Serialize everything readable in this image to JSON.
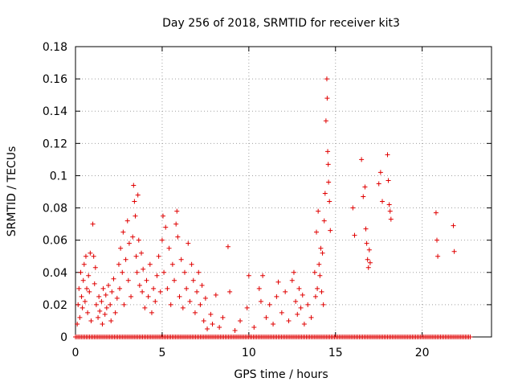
{
  "chart_data": {
    "type": "scatter",
    "title": "Day 256 of 2018, SRMTID for receiver kit3",
    "xlabel": "GPS time / hours",
    "ylabel": "SRMTID / TECUs",
    "xlim": [
      0,
      24
    ],
    "ylim": [
      0,
      0.18
    ],
    "xticks": [
      0,
      5,
      10,
      15,
      20
    ],
    "yticks": [
      0,
      0.02,
      0.04,
      0.06,
      0.08,
      0.1,
      0.12,
      0.14,
      0.16,
      0.18
    ],
    "xtick_labels": [
      "0",
      "5",
      "10",
      "15",
      "20"
    ],
    "ytick_labels": [
      "0",
      "0.02",
      "0.04",
      "0.06",
      "0.08",
      "0.1",
      "0.12",
      "0.14",
      "0.16",
      "0.18"
    ],
    "grid": true,
    "marker": "+",
    "color": "#e00000",
    "series": [
      {
        "name": "kit3",
        "points": [
          [
            0.1,
            0.008
          ],
          [
            0.15,
            0.02
          ],
          [
            0.2,
            0.03
          ],
          [
            0.25,
            0.012
          ],
          [
            0.3,
            0.04
          ],
          [
            0.35,
            0.025
          ],
          [
            0.4,
            0.018
          ],
          [
            0.45,
            0.035
          ],
          [
            0.5,
            0.045
          ],
          [
            0.55,
            0.022
          ],
          [
            0.6,
            0.05
          ],
          [
            0.65,
            0.03
          ],
          [
            0.7,
            0.015
          ],
          [
            0.75,
            0.038
          ],
          [
            0.8,
            0.028
          ],
          [
            0.85,
            0.052
          ],
          [
            0.9,
            0.01
          ],
          [
            1.0,
            0.07
          ],
          [
            1.05,
            0.05
          ],
          [
            1.1,
            0.033
          ],
          [
            1.15,
            0.043
          ],
          [
            1.2,
            0.02
          ],
          [
            1.3,
            0.012
          ],
          [
            1.35,
            0.025
          ],
          [
            1.4,
            0.016
          ],
          [
            1.5,
            0.022
          ],
          [
            1.55,
            0.008
          ],
          [
            1.6,
            0.03
          ],
          [
            1.7,
            0.014
          ],
          [
            1.75,
            0.026
          ],
          [
            1.8,
            0.018
          ],
          [
            1.9,
            0.032
          ],
          [
            2.0,
            0.02
          ],
          [
            2.05,
            0.01
          ],
          [
            2.1,
            0.028
          ],
          [
            2.2,
            0.036
          ],
          [
            2.3,
            0.015
          ],
          [
            2.4,
            0.024
          ],
          [
            2.5,
            0.045
          ],
          [
            2.55,
            0.03
          ],
          [
            2.6,
            0.055
          ],
          [
            2.7,
            0.04
          ],
          [
            2.75,
            0.065
          ],
          [
            2.8,
            0.02
          ],
          [
            2.9,
            0.048
          ],
          [
            3.0,
            0.072
          ],
          [
            3.05,
            0.035
          ],
          [
            3.1,
            0.058
          ],
          [
            3.2,
            0.025
          ],
          [
            3.3,
            0.062
          ],
          [
            3.35,
            0.094
          ],
          [
            3.4,
            0.084
          ],
          [
            3.45,
            0.075
          ],
          [
            3.5,
            0.05
          ],
          [
            3.55,
            0.04
          ],
          [
            3.6,
            0.088
          ],
          [
            3.65,
            0.06
          ],
          [
            3.7,
            0.032
          ],
          [
            3.8,
            0.052
          ],
          [
            3.85,
            0.028
          ],
          [
            3.9,
            0.042
          ],
          [
            4.0,
            0.018
          ],
          [
            4.1,
            0.035
          ],
          [
            4.2,
            0.025
          ],
          [
            4.3,
            0.045
          ],
          [
            4.4,
            0.015
          ],
          [
            4.5,
            0.03
          ],
          [
            4.6,
            0.022
          ],
          [
            4.7,
            0.038
          ],
          [
            4.8,
            0.05
          ],
          [
            4.9,
            0.028
          ],
          [
            5.0,
            0.06
          ],
          [
            5.05,
            0.075
          ],
          [
            5.1,
            0.04
          ],
          [
            5.2,
            0.068
          ],
          [
            5.3,
            0.03
          ],
          [
            5.4,
            0.055
          ],
          [
            5.5,
            0.02
          ],
          [
            5.6,
            0.045
          ],
          [
            5.7,
            0.035
          ],
          [
            5.8,
            0.07
          ],
          [
            5.85,
            0.078
          ],
          [
            5.9,
            0.062
          ],
          [
            6.0,
            0.025
          ],
          [
            6.1,
            0.048
          ],
          [
            6.2,
            0.018
          ],
          [
            6.3,
            0.04
          ],
          [
            6.4,
            0.03
          ],
          [
            6.5,
            0.058
          ],
          [
            6.6,
            0.022
          ],
          [
            6.7,
            0.045
          ],
          [
            6.8,
            0.035
          ],
          [
            6.9,
            0.015
          ],
          [
            7.0,
            0.028
          ],
          [
            7.1,
            0.04
          ],
          [
            7.2,
            0.02
          ],
          [
            7.3,
            0.032
          ],
          [
            7.4,
            0.01
          ],
          [
            7.5,
            0.024
          ],
          [
            7.6,
            0.005
          ],
          [
            7.8,
            0.014
          ],
          [
            7.9,
            0.008
          ],
          [
            8.1,
            0.026
          ],
          [
            8.3,
            0.006
          ],
          [
            8.5,
            0.012
          ],
          [
            8.8,
            0.056
          ],
          [
            8.9,
            0.028
          ],
          [
            9.2,
            0.004
          ],
          [
            9.5,
            0.01
          ],
          [
            9.9,
            0.018
          ],
          [
            10.0,
            0.038
          ],
          [
            10.3,
            0.006
          ],
          [
            10.6,
            0.03
          ],
          [
            10.7,
            0.022
          ],
          [
            10.8,
            0.038
          ],
          [
            11.0,
            0.012
          ],
          [
            11.2,
            0.02
          ],
          [
            11.4,
            0.008
          ],
          [
            11.6,
            0.025
          ],
          [
            11.7,
            0.034
          ],
          [
            11.9,
            0.015
          ],
          [
            12.1,
            0.028
          ],
          [
            12.3,
            0.01
          ],
          [
            12.5,
            0.035
          ],
          [
            12.6,
            0.04
          ],
          [
            12.7,
            0.022
          ],
          [
            12.8,
            0.014
          ],
          [
            12.9,
            0.03
          ],
          [
            13.0,
            0.018
          ],
          [
            13.1,
            0.026
          ],
          [
            13.2,
            0.008
          ],
          [
            13.4,
            0.02
          ],
          [
            13.6,
            0.012
          ],
          [
            13.8,
            0.04
          ],
          [
            13.85,
            0.025
          ],
          [
            13.9,
            0.065
          ],
          [
            13.95,
            0.03
          ],
          [
            14.0,
            0.078
          ],
          [
            14.05,
            0.045
          ],
          [
            14.1,
            0.038
          ],
          [
            14.15,
            0.055
          ],
          [
            14.2,
            0.028
          ],
          [
            14.25,
            0.052
          ],
          [
            14.3,
            0.02
          ],
          [
            14.35,
            0.072
          ],
          [
            14.4,
            0.089
          ],
          [
            14.45,
            0.134
          ],
          [
            14.5,
            0.16
          ],
          [
            14.52,
            0.148
          ],
          [
            14.55,
            0.115
          ],
          [
            14.58,
            0.107
          ],
          [
            14.6,
            0.096
          ],
          [
            14.65,
            0.084
          ],
          [
            14.7,
            0.066
          ],
          [
            16.0,
            0.08
          ],
          [
            16.1,
            0.063
          ],
          [
            16.5,
            0.11
          ],
          [
            16.6,
            0.087
          ],
          [
            16.7,
            0.093
          ],
          [
            16.75,
            0.067
          ],
          [
            16.8,
            0.058
          ],
          [
            16.85,
            0.048
          ],
          [
            16.9,
            0.043
          ],
          [
            16.95,
            0.054
          ],
          [
            17.0,
            0.046
          ],
          [
            17.5,
            0.095
          ],
          [
            17.6,
            0.102
          ],
          [
            17.7,
            0.084
          ],
          [
            18.0,
            0.113
          ],
          [
            18.05,
            0.097
          ],
          [
            18.1,
            0.082
          ],
          [
            18.15,
            0.078
          ],
          [
            18.2,
            0.073
          ],
          [
            20.8,
            0.077
          ],
          [
            20.85,
            0.06
          ],
          [
            20.9,
            0.05
          ],
          [
            21.8,
            0.069
          ],
          [
            21.85,
            0.053
          ]
        ]
      }
    ],
    "zero_line": {
      "y": 0,
      "x_from": 0,
      "x_to": 22.8
    }
  }
}
